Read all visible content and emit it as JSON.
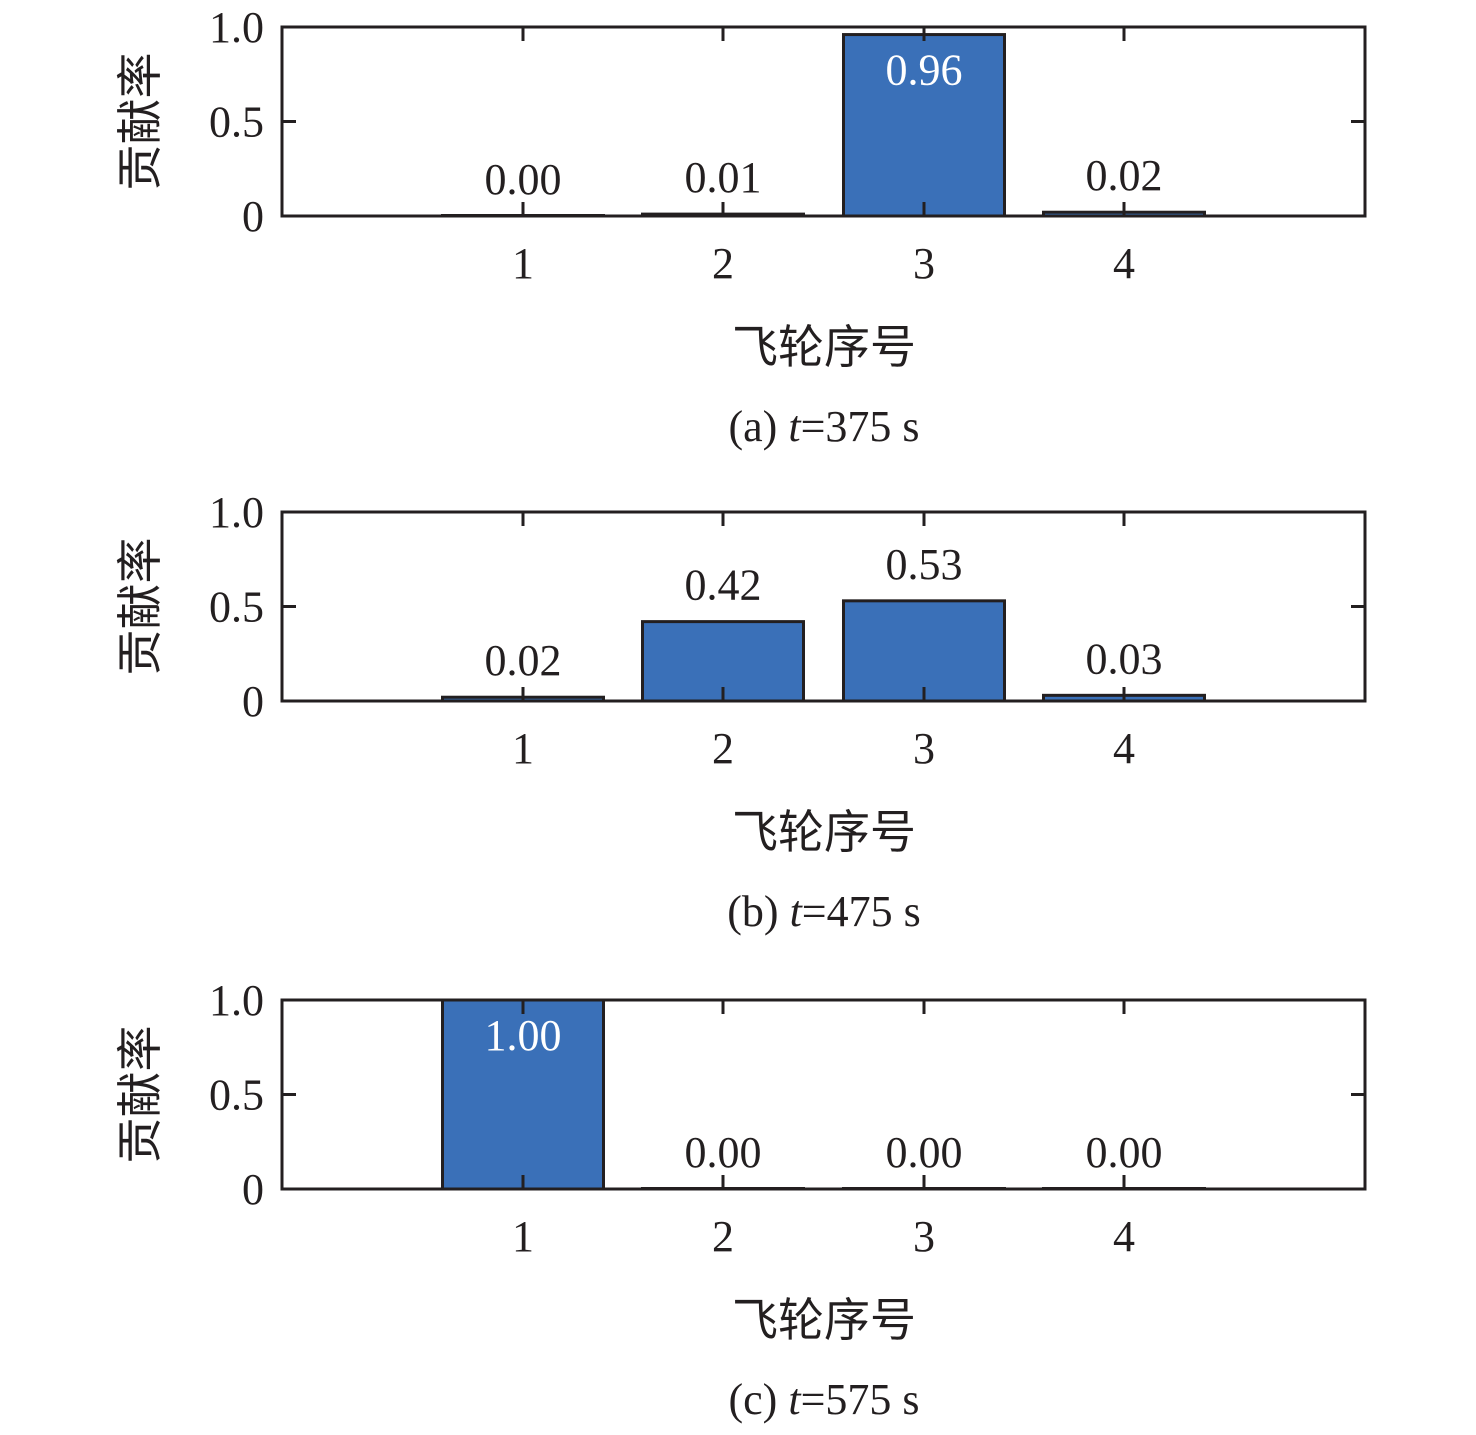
{
  "chart_data": [
    {
      "type": "bar",
      "categories": [
        "1",
        "2",
        "3",
        "4"
      ],
      "values": [
        0.0,
        0.01,
        0.96,
        0.02
      ],
      "value_labels": [
        "0.00",
        "0.01",
        "0.96",
        "0.02"
      ],
      "xlabel": "飞轮序号",
      "ylabel": "贡献率",
      "ylim": [
        0,
        1.0
      ],
      "yticks": [
        "0",
        "0.5",
        "1.0"
      ],
      "caption": {
        "prefix": "(a) ",
        "var": "t",
        "suffix": "=375 s"
      }
    },
    {
      "type": "bar",
      "categories": [
        "1",
        "2",
        "3",
        "4"
      ],
      "values": [
        0.02,
        0.42,
        0.53,
        0.03
      ],
      "value_labels": [
        "0.02",
        "0.42",
        "0.53",
        "0.03"
      ],
      "xlabel": "飞轮序号",
      "ylabel": "贡献率",
      "ylim": [
        0,
        1.0
      ],
      "yticks": [
        "0",
        "0.5",
        "1.0"
      ],
      "caption": {
        "prefix": "(b) ",
        "var": "t",
        "suffix": "=475 s"
      }
    },
    {
      "type": "bar",
      "categories": [
        "1",
        "2",
        "3",
        "4"
      ],
      "values": [
        1.0,
        0.0,
        0.0,
        0.0
      ],
      "value_labels": [
        "1.00",
        "0.00",
        "0.00",
        "0.00"
      ],
      "xlabel": "飞轮序号",
      "ylabel": "贡献率",
      "ylim": [
        0,
        1.0
      ],
      "yticks": [
        "0",
        "0.5",
        "1.0"
      ],
      "caption": {
        "prefix": "(c) ",
        "var": "t",
        "suffix": "=575 s"
      }
    }
  ],
  "style": {
    "bar_color": "#3a70b8",
    "inside_label_color": "#ffffff"
  }
}
